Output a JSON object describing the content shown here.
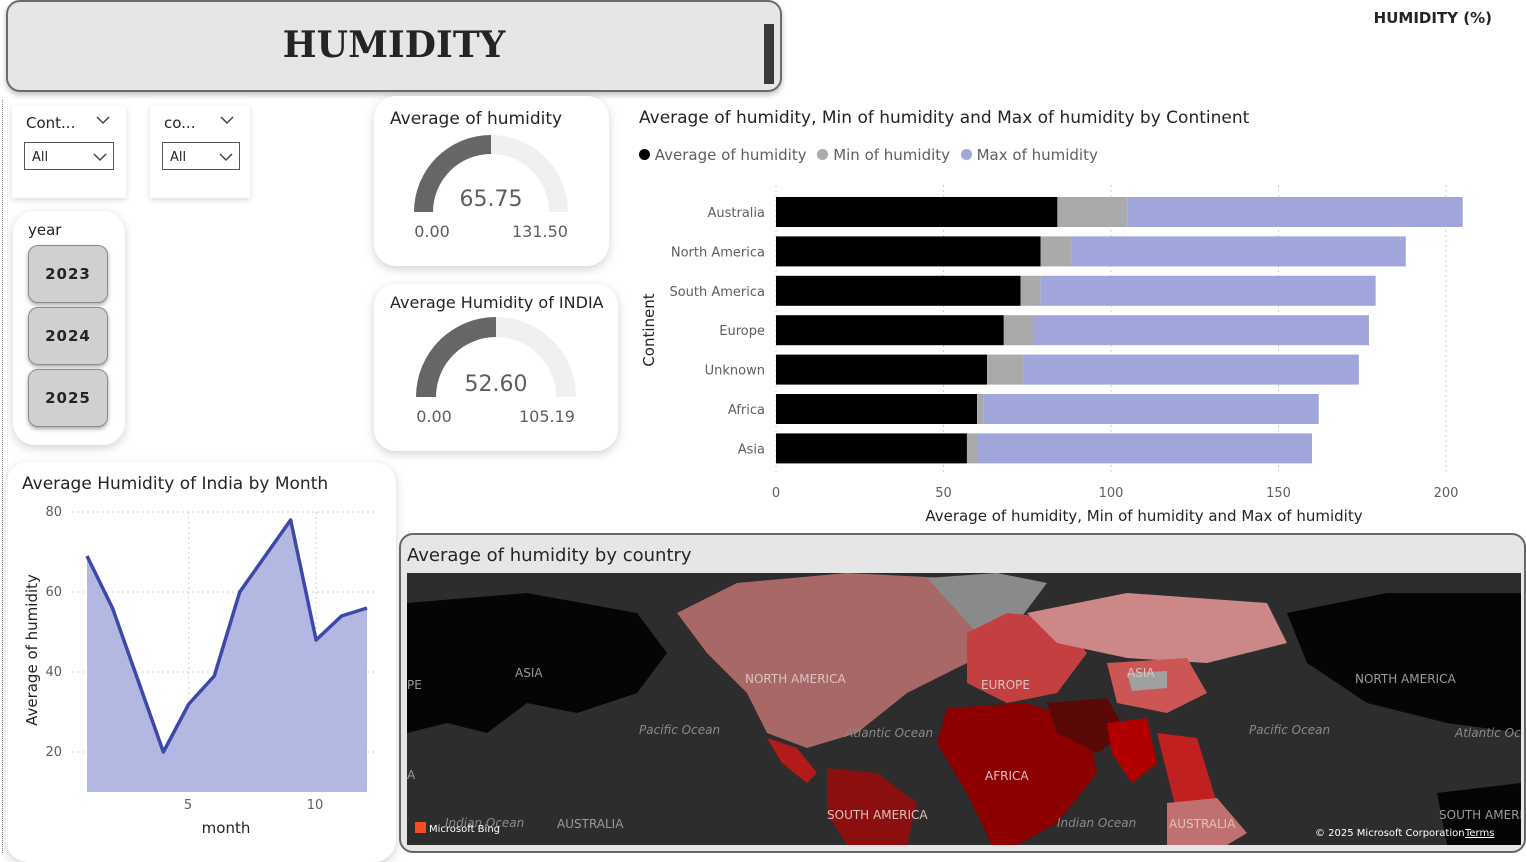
{
  "header": {
    "title": "HUMIDITY",
    "top_right_label": "HUMIDITY (%)"
  },
  "filters": {
    "continent": {
      "label": "Cont...",
      "value": "All"
    },
    "country": {
      "label": "co...",
      "value": "All"
    },
    "year": {
      "label": "year",
      "options": [
        "2023",
        "2024",
        "2025"
      ]
    }
  },
  "kpis": {
    "average": {
      "title": "Average of humidity",
      "value": "65.75",
      "min": "0.00",
      "max": "131.50",
      "fraction": 0.5
    },
    "india": {
      "title": "Average Humidity of INDIA",
      "value": "52.60",
      "min": "0.00",
      "max": "105.19",
      "fraction": 0.5
    }
  },
  "continent_chart": {
    "title": "Average of humidity, Min of humidity and Max of humidity by Continent",
    "legend": [
      "Average of humidity",
      "Min of humidity",
      "Max of humidity"
    ],
    "xlabel": "Average of humidity, Min of humidity and Max of humidity",
    "ylabel": "Continent",
    "x_ticks": [
      "0",
      "50",
      "100",
      "150",
      "200"
    ]
  },
  "india_chart": {
    "title": "Average Humidity of India by Month",
    "xlabel": "month",
    "ylabel": "Average of humidity",
    "y_ticks": [
      "80",
      "60",
      "40",
      "20"
    ],
    "x_ticks": [
      "5",
      "10"
    ]
  },
  "map": {
    "title": "Average of humidity by country",
    "labels": {
      "asia_left": "ASIA",
      "na": "NORTH AMERICA",
      "europe": "EUROPE",
      "asia": "ASIA",
      "na_right": "NORTH AMERICA",
      "pacific_left": "Pacific Ocean",
      "atlantic": "Atlantic Ocean",
      "pacific_right": "Pacific Ocean",
      "atlantic_right": "Atlantic Oc",
      "africa": "AFRICA",
      "indian_left": "Indian Ocean",
      "australia_left": "AUSTRALIA",
      "south_america": "SOUTH AMERICA",
      "indian": "Indian Ocean",
      "australia": "AUSTRALIA",
      "sa_right": "SOUTH AMERI",
      "edge_pe": "PE",
      "edge_a": "A"
    },
    "attribution": "Microsoft Bing",
    "copyright": "© 2025 Microsoft Corporation",
    "terms": "Terms"
  },
  "colors": {
    "average": "#000000",
    "min": "#aaaaaa",
    "max": "#a0a6da",
    "line": "#3d49a8",
    "area": "#b3b8e3"
  },
  "chart_data": [
    {
      "type": "bar",
      "categories": [
        "Australia",
        "North America",
        "South America",
        "Europe",
        "Unknown",
        "Africa",
        "Asia"
      ],
      "series": [
        {
          "name": "Average of humidity",
          "values": [
            84,
            79,
            73,
            68,
            63,
            60,
            57
          ]
        },
        {
          "name": "Min of humidity",
          "values": [
            21,
            9,
            6,
            9,
            11,
            2,
            3
          ]
        },
        {
          "name": "Max of humidity",
          "values": [
            100,
            100,
            100,
            100,
            100,
            100,
            100
          ]
        }
      ],
      "stacked": true,
      "xlim": [
        0,
        210
      ],
      "grid": true,
      "legend_position": "top-left"
    },
    {
      "type": "area",
      "x": [
        1,
        2,
        3,
        4,
        5,
        6,
        7,
        8,
        9,
        10,
        11,
        12
      ],
      "values": [
        69,
        56,
        38,
        20,
        32,
        39,
        60,
        69,
        78,
        48,
        54,
        56
      ],
      "ylim": [
        10,
        80
      ],
      "xlim": [
        1,
        12
      ],
      "grid": true
    }
  ]
}
